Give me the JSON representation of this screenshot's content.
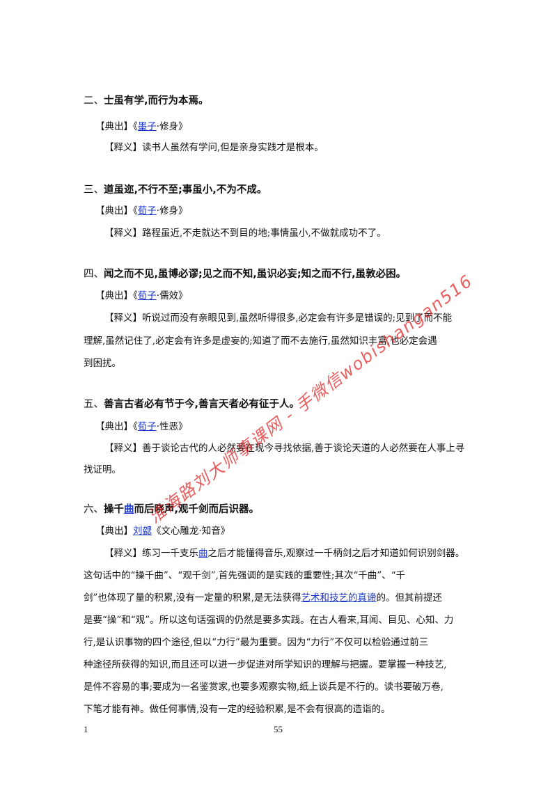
{
  "s2": {
    "num": "二、",
    "title": "士虽有学,而行为本焉。",
    "src_pre": "【典出】《",
    "src_link": "墨子",
    "src_post": "·修身》",
    "mean": "【释义】读书人虽然有学问,但是亲身实践才是根本。"
  },
  "s3": {
    "num": "三、",
    "title": "道虽迩,不行不至;事虽小,不为不成。",
    "src_pre": "【典出】《",
    "src_link": "荀子",
    "src_post": "·修身》",
    "mean": "【释义】路程虽近,不走就达不到目的地;事情虽小,不做就成功不了。"
  },
  "s4": {
    "num": "四、",
    "title": "闻之而不见,虽博必谬;见之而不知,虽识必妄;知之而不行,虽敦必困。",
    "src_pre": "【典出】《",
    "src_link": "荀子",
    "src_post": "·儒效》",
    "mean1": "【释义】听说过而没有亲眼见到,虽然听得很多,必定会有许多是错误的;见到了而不能",
    "mean2": "理解,虽然记住了,必定会有许多是虚妄的;知道了而不去施行,虽然知识丰富,也必定会遇",
    "mean3": "到困扰。"
  },
  "s5": {
    "num": "五、",
    "title": "善言古者必有节于今,善言天者必有征于人。",
    "src_pre": "【典出】《",
    "src_link": "荀子",
    "src_post": "·性恶》",
    "mean1": "【释义】善于谈论古代的人必然要在现今寻找依据,善于谈论天道的人必然要在人事上寻",
    "mean2": "找证明。"
  },
  "s6": {
    "num": "六、",
    "title_pre": "操千",
    "title_link": "曲",
    "title_post": "而后晓声,观千剑而后识器。",
    "src_pre": "【典出】",
    "src_link": "刘勰",
    "src_post": "《文心雕龙·知音》",
    "m1_pre": "【释义】练习一千支乐",
    "m1_link": "曲",
    "m1_post": "之后才能懂得音乐,观察过一千柄剑之后才知道如何识别剑器。",
    "m2": "这句话中的“操千曲”、“观千剑”,首先强调的是实践的重要性;其次“千曲”、“千",
    "m3_pre": "剑”也体现了量的积累,没有一定量的积累,是无法获得",
    "m3_link": "艺术和技艺的真谛",
    "m3_post": "的。但其前提还",
    "m4": "是要“操”和“观”。所以这句话强调的仍然是要多实践。在古人看来,耳闻、目见、心知、力",
    "m5": "行,是认识事物的四个途径,但以“力行”最为重要。因为“力行”不仅可以检验通过前三",
    "m6": "种途径所获得的知识,而且还可以进一步促进对所学知识的理解与把握。要掌握一种技艺,",
    "m7": "是件不容易的事;要成为一名鉴赏家,也要多观察实物,纸上谈兵是不行的。读书要破万卷,",
    "m8": "下笔才能有神。做任何事情,没有一定的经验积累,是不会有很高的造诣的。"
  },
  "footer": {
    "left": "1",
    "page": "55"
  },
  "watermark": "淮海路刘大师事课网 - 手微信wobishangan516",
  "colors": {
    "link": "#1a35c9",
    "watermark": "#e02020"
  }
}
